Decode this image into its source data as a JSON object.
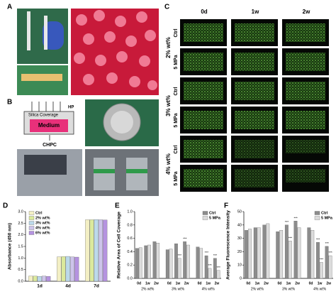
{
  "panel_labels": [
    "A",
    "B",
    "C",
    "D",
    "E",
    "F"
  ],
  "panel_b": {
    "pressure": "HP",
    "coverage": "Silica Coverage",
    "medium": "Medium",
    "container": "CHPC"
  },
  "panel_c": {
    "columns": [
      "0d",
      "1w",
      "2w"
    ],
    "groups": [
      {
        "label": "2% wt%",
        "rows": [
          "Ctrl",
          "5 MPa"
        ]
      },
      {
        "label": "3% wt%",
        "rows": [
          "Ctrl",
          "5 MPa"
        ]
      },
      {
        "label": "4% wt%",
        "rows": [
          "Ctrl",
          "5 MPa"
        ]
      }
    ]
  },
  "chart_data": [
    {
      "type": "bar",
      "y_label": "Absorbance (450 nm)",
      "categories": [
        "1d",
        "4d",
        "7d"
      ],
      "series": [
        {
          "name": "Ctrl",
          "color": "#f3efc4",
          "values": [
            0.22,
            1.05,
            2.65
          ]
        },
        {
          "name": "2% wt%",
          "color": "#dbe99c",
          "values": [
            0.22,
            1.06,
            2.65
          ]
        },
        {
          "name": "3% wt%",
          "color": "#bcd9ea",
          "values": [
            0.21,
            1.07,
            2.66
          ]
        },
        {
          "name": "4% wt%",
          "color": "#cdc4ea",
          "values": [
            0.22,
            1.05,
            2.65
          ]
        },
        {
          "name": "6% wt%",
          "color": "#b593e0",
          "values": [
            0.21,
            1.04,
            2.64
          ]
        }
      ],
      "ylim": [
        0,
        3
      ],
      "yticks": [
        {
          "value": 0,
          "label": "0.0"
        },
        {
          "value": 0.5,
          "label": "0.5"
        },
        {
          "value": 1,
          "label": "1.0"
        },
        {
          "value": 1.5,
          "label": "1.5"
        },
        {
          "value": 2,
          "label": "2.0"
        },
        {
          "value": 2.5,
          "label": "2.5"
        },
        {
          "value": 3,
          "label": "3.0"
        }
      ],
      "legend": "upper left"
    },
    {
      "type": "bar",
      "y_label": "Relative Area of Cell Coverage",
      "categories": [
        "0d",
        "1w",
        "2w",
        "0d",
        "1w",
        "2w",
        "0d",
        "1w",
        "2w"
      ],
      "groups": [
        "2% wt%",
        "3% wt%",
        "4% wt%"
      ],
      "series": [
        {
          "name": "Ctrl",
          "color": "#8c8c8c",
          "values": [
            0.45,
            0.49,
            0.55,
            0.43,
            0.52,
            0.55,
            0.47,
            0.34,
            0.3
          ],
          "significance": [
            null,
            null,
            null,
            null,
            null,
            "***",
            null,
            "***",
            "***"
          ]
        },
        {
          "name": "5 MPa",
          "color": "#dcdcdc",
          "values": [
            0.46,
            0.5,
            0.53,
            0.44,
            0.3,
            0.5,
            0.45,
            0.15,
            0.12
          ],
          "significance": [
            null,
            null,
            null,
            null,
            "***",
            null,
            null,
            "***",
            "***"
          ]
        }
      ],
      "ylim": [
        0,
        1
      ],
      "yticks": [
        {
          "value": 0,
          "label": "0.0"
        },
        {
          "value": 0.2,
          "label": "0.2"
        },
        {
          "value": 0.4,
          "label": "0.4"
        },
        {
          "value": 0.6,
          "label": "0.6"
        },
        {
          "value": 0.8,
          "label": "0.8"
        },
        {
          "value": 1,
          "label": "1.0"
        }
      ],
      "legend": "upper right"
    },
    {
      "type": "bar",
      "y_label": "Average Fluorescence Intensity",
      "categories": [
        "0d",
        "1w",
        "2w",
        "0d",
        "1w",
        "2w",
        "0d",
        "1w",
        "2w"
      ],
      "groups": [
        "2% wt%",
        "3% wt%",
        "4% wt%"
      ],
      "series": [
        {
          "name": "Ctrl",
          "color": "#8c8c8c",
          "values": [
            36,
            38,
            40,
            35,
            40,
            43,
            38,
            27,
            24
          ],
          "significance": [
            null,
            null,
            null,
            null,
            "***",
            "***",
            null,
            "***",
            "***"
          ]
        },
        {
          "name": "5 MPa",
          "color": "#dcdcdc",
          "values": [
            37,
            38,
            41,
            36,
            28,
            38,
            36,
            12,
            17
          ],
          "significance": [
            null,
            null,
            null,
            null,
            "***",
            null,
            null,
            "***",
            "***"
          ]
        }
      ],
      "ylim": [
        0,
        50
      ],
      "yticks": [
        0,
        10,
        20,
        30,
        40,
        50
      ],
      "legend": "upper right"
    }
  ]
}
